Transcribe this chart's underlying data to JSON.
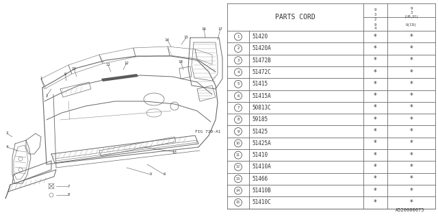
{
  "figure_id": "A520000075",
  "fig_ref": "FIG 720-A1",
  "table_header": "PARTS CORD",
  "parts": [
    {
      "num": 1,
      "code": "51420"
    },
    {
      "num": 2,
      "code": "51420A"
    },
    {
      "num": 3,
      "code": "51472B"
    },
    {
      "num": 4,
      "code": "51472C"
    },
    {
      "num": 5,
      "code": "51415"
    },
    {
      "num": 6,
      "code": "51415A"
    },
    {
      "num": 7,
      "code": "50813C"
    },
    {
      "num": 8,
      "code": "59185"
    },
    {
      "num": 9,
      "code": "51425"
    },
    {
      "num": 10,
      "code": "51425A"
    },
    {
      "num": 11,
      "code": "51410"
    },
    {
      "num": 12,
      "code": "51410A"
    },
    {
      "num": 13,
      "code": "51466"
    },
    {
      "num": 14,
      "code": "51410B"
    },
    {
      "num": 15,
      "code": "51410C"
    }
  ],
  "bg_color": "#ffffff",
  "line_color": "#666666",
  "text_color": "#333333"
}
